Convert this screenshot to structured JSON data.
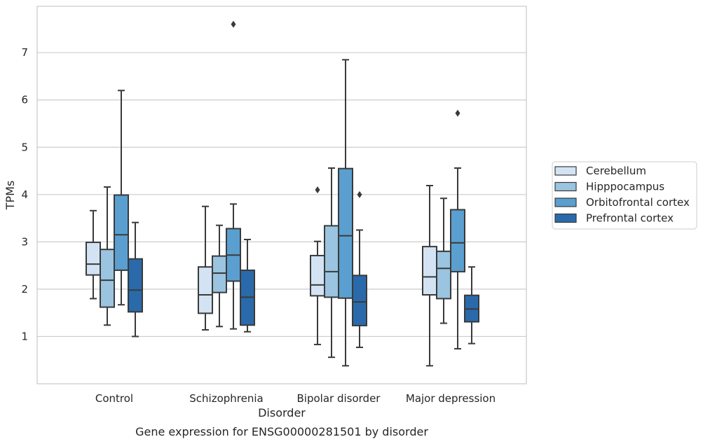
{
  "chart_data": {
    "type": "box",
    "title": "",
    "caption": "Gene expression for ENSG00000281501 by disorder",
    "xlabel": "Disorder",
    "ylabel": "TPMs",
    "categories": [
      "Control",
      "Schizophrenia",
      "Bipolar disorder",
      "Major depression"
    ],
    "yticks": [
      1,
      2,
      3,
      4,
      5,
      6,
      7
    ],
    "ylim": [
      0.0,
      7.98
    ],
    "grid": "horizontal",
    "legend_position": "right",
    "series": [
      {
        "name": "Cerebellum",
        "color": "#d3e3f3",
        "boxes": [
          {
            "whislo": 1.8,
            "q1": 2.3,
            "med": 2.53,
            "q3": 2.99,
            "whishi": 3.66,
            "fliers": []
          },
          {
            "whislo": 1.14,
            "q1": 1.49,
            "med": 1.88,
            "q3": 2.47,
            "whishi": 3.75,
            "fliers": []
          },
          {
            "whislo": 0.83,
            "q1": 1.86,
            "med": 2.09,
            "q3": 2.71,
            "whishi": 3.01,
            "fliers": [
              4.1
            ]
          },
          {
            "whislo": 0.38,
            "q1": 1.88,
            "med": 2.26,
            "q3": 2.9,
            "whishi": 4.19,
            "fliers": []
          }
        ]
      },
      {
        "name": "Hipppocampus",
        "color": "#9ac4e0",
        "boxes": [
          {
            "whislo": 1.24,
            "q1": 1.62,
            "med": 2.19,
            "q3": 2.84,
            "whishi": 4.16,
            "fliers": []
          },
          {
            "whislo": 1.21,
            "q1": 1.93,
            "med": 2.34,
            "q3": 2.7,
            "whishi": 3.35,
            "fliers": []
          },
          {
            "whislo": 0.56,
            "q1": 1.83,
            "med": 2.37,
            "q3": 3.34,
            "whishi": 4.56,
            "fliers": []
          },
          {
            "whislo": 1.28,
            "q1": 1.8,
            "med": 2.44,
            "q3": 2.8,
            "whishi": 3.92,
            "fliers": []
          }
        ]
      },
      {
        "name": "Orbitofrontal cortex",
        "color": "#5a9fcf",
        "boxes": [
          {
            "whislo": 1.67,
            "q1": 2.4,
            "med": 3.15,
            "q3": 3.99,
            "whishi": 6.2,
            "fliers": []
          },
          {
            "whislo": 1.16,
            "q1": 2.17,
            "med": 2.72,
            "q3": 3.28,
            "whishi": 3.8,
            "fliers": [
              7.6
            ]
          },
          {
            "whislo": 0.38,
            "q1": 1.81,
            "med": 3.13,
            "q3": 4.55,
            "whishi": 6.85,
            "fliers": []
          },
          {
            "whislo": 0.74,
            "q1": 2.37,
            "med": 2.98,
            "q3": 3.68,
            "whishi": 4.56,
            "fliers": [
              5.72
            ]
          }
        ]
      },
      {
        "name": "Prefrontal cortex",
        "color": "#2a6aab",
        "boxes": [
          {
            "whislo": 1.0,
            "q1": 1.52,
            "med": 1.98,
            "q3": 2.64,
            "whishi": 3.41,
            "fliers": []
          },
          {
            "whislo": 1.1,
            "q1": 1.24,
            "med": 1.83,
            "q3": 2.4,
            "whishi": 3.05,
            "fliers": []
          },
          {
            "whislo": 0.77,
            "q1": 1.23,
            "med": 1.73,
            "q3": 2.29,
            "whishi": 3.25,
            "fliers": [
              4.0
            ]
          },
          {
            "whislo": 0.85,
            "q1": 1.31,
            "med": 1.58,
            "q3": 1.87,
            "whishi": 2.47,
            "fliers": []
          }
        ]
      }
    ]
  },
  "style": {
    "edge_color": "#3a3a3a",
    "grid_color": "#cccccc",
    "spine_color": "#cccccc",
    "background": "#ffffff"
  }
}
